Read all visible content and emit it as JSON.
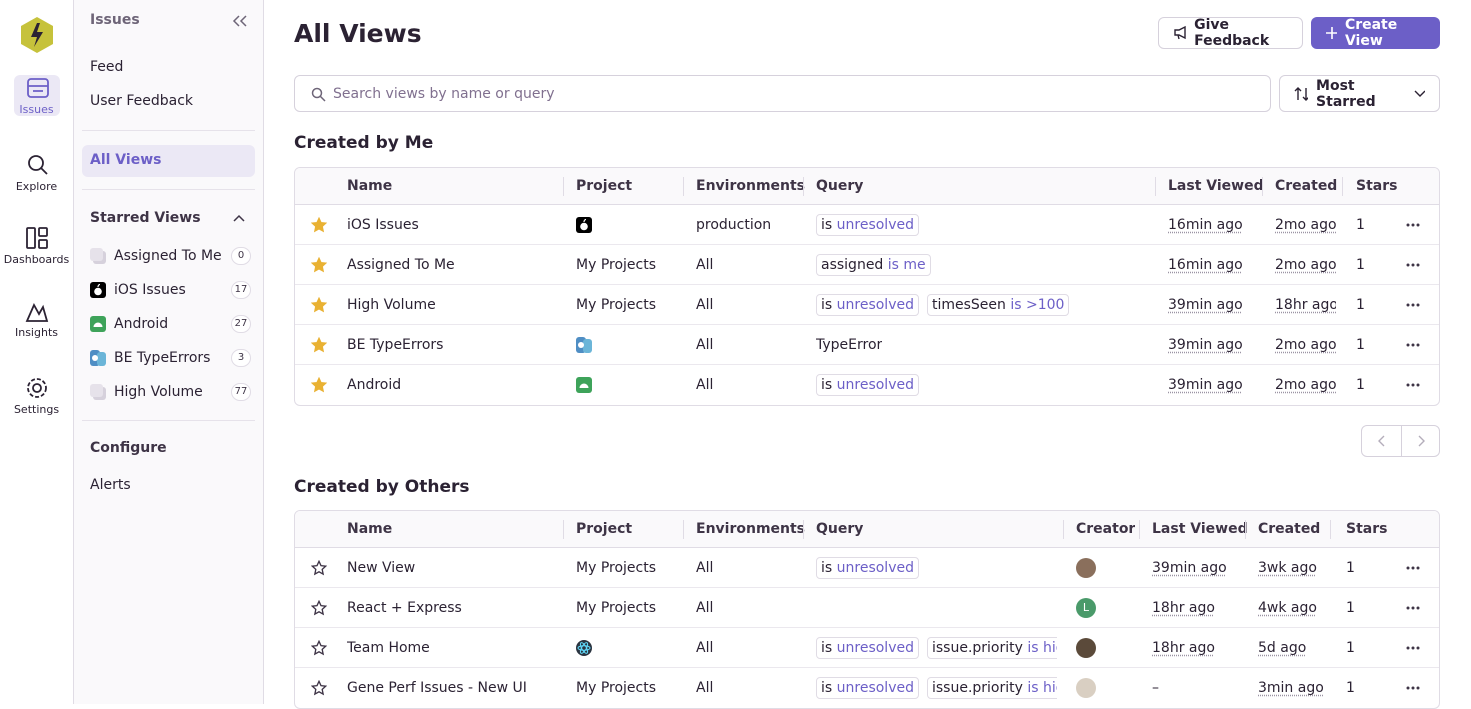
{
  "nav": {
    "items": [
      "Issues",
      "Explore",
      "Dashboards",
      "Insights",
      "Settings"
    ]
  },
  "sidebar": {
    "title": "Issues",
    "links": [
      "Feed",
      "User Feedback"
    ],
    "active": "All Views",
    "starred_title": "Starred Views",
    "starred": [
      {
        "name": "Assigned To Me",
        "count": 0,
        "icon": "generic"
      },
      {
        "name": "iOS Issues",
        "count": 17,
        "icon": "apple"
      },
      {
        "name": "Android",
        "count": 27,
        "icon": "android"
      },
      {
        "name": "BE TypeErrors",
        "count": 3,
        "icon": "multi"
      },
      {
        "name": "High Volume",
        "count": 77,
        "icon": "generic"
      }
    ],
    "configure_title": "Configure",
    "configure_links": [
      "Alerts"
    ]
  },
  "header": {
    "title": "All Views",
    "feedback_button": "Give Feedback",
    "create_button": "Create View",
    "search_placeholder": "Search views by name or query",
    "sort": "Most Starred"
  },
  "mine": {
    "title": "Created by Me",
    "columns": [
      "Name",
      "Project",
      "Environments",
      "Query",
      "Last Viewed",
      "Created",
      "Stars"
    ],
    "rows": [
      {
        "starred": true,
        "name": "iOS Issues",
        "project_icon": "apple",
        "environment": "production",
        "query": [
          {
            "key": "is",
            "value": "unresolved"
          }
        ],
        "last_viewed": "16min ago",
        "created": "2mo ago",
        "stars": 1
      },
      {
        "starred": true,
        "name": "Assigned To Me",
        "project": "My Projects",
        "environment": "All",
        "query": [
          {
            "key": "assigned",
            "value": "is me"
          }
        ],
        "last_viewed": "16min ago",
        "created": "2mo ago",
        "stars": 1
      },
      {
        "starred": true,
        "name": "High Volume",
        "project": "My Projects",
        "environment": "All",
        "query": [
          {
            "key": "is",
            "value": "unresolved"
          },
          {
            "key": "timesSeen",
            "value": "is >100"
          }
        ],
        "last_viewed": "39min ago",
        "created": "18hr ago",
        "stars": 1
      },
      {
        "starred": true,
        "name": "BE TypeErrors",
        "project_icon": "multi",
        "environment": "All",
        "query": [
          {
            "text": "TypeError"
          }
        ],
        "last_viewed": "39min ago",
        "created": "2mo ago",
        "stars": 1
      },
      {
        "starred": true,
        "name": "Android",
        "project_icon": "android",
        "environment": "All",
        "query": [
          {
            "key": "is",
            "value": "unresolved"
          }
        ],
        "last_viewed": "39min ago",
        "created": "2mo ago",
        "stars": 1
      }
    ]
  },
  "others": {
    "title": "Created by Others",
    "columns": [
      "Name",
      "Project",
      "Environments",
      "Query",
      "Creator",
      "Last Viewed",
      "Created",
      "Stars"
    ],
    "rows": [
      {
        "starred": false,
        "name": "New View",
        "project": "My Projects",
        "environment": "All",
        "query": [
          {
            "key": "is",
            "value": "unresolved"
          }
        ],
        "creator": {
          "avatar": "#8a6f5c"
        },
        "last_viewed": "39min ago",
        "created": "3wk ago",
        "stars": 1
      },
      {
        "starred": false,
        "name": "React + Express",
        "project": "My Projects",
        "environment": "All",
        "query": [],
        "creator": {
          "avatar": "#4a9a6a",
          "initial": "L"
        },
        "last_viewed": "18hr ago",
        "created": "4wk ago",
        "stars": 1
      },
      {
        "starred": false,
        "name": "Team Home",
        "project_icon": "react",
        "environment": "All",
        "query": [
          {
            "key": "is",
            "value": "unresolved"
          },
          {
            "key": "issue.priority",
            "value": "is high"
          }
        ],
        "creator": {
          "avatar": "#5b4a3a"
        },
        "last_viewed": "18hr ago",
        "created": "5d ago",
        "stars": 1
      },
      {
        "starred": false,
        "name": "Gene Perf Issues - New UI",
        "project": "My Projects",
        "environment": "All",
        "query": [
          {
            "key": "is",
            "value": "unresolved"
          },
          {
            "key": "issue.priority",
            "value": "is high"
          }
        ],
        "creator": {
          "avatar": "#d9cfc2"
        },
        "last_viewed": "–",
        "created": "3min ago",
        "stars": 1
      }
    ]
  }
}
